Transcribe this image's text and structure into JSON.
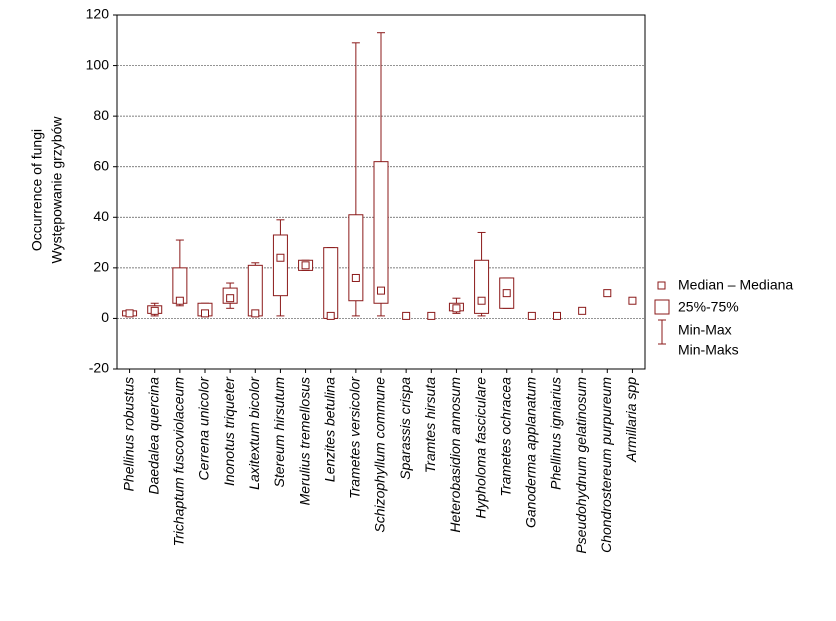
{
  "chart_data": {
    "type": "box",
    "ylabel": [
      "Occurrence of fungi",
      "Występowanie grzybów"
    ],
    "categories": [
      "Phellinus robustus",
      "Daedalea quercina",
      "Trichaptum fuscoviolaceum",
      "Cerrena unicolor",
      "Inonotus triqueter",
      "Laxitextum bicolor",
      "Stereum hirsutum",
      "Merulius tremellosus",
      "Lenzites betulina",
      "Trametes versicolor",
      "Schizophyllum commune",
      "Sparassis crispa",
      "Tramtes hirsuta",
      "Heterobasidion annosum",
      "Hypholoma fasciculare",
      "Trametes ochracea",
      "Ganoderma applanatum",
      "Phellinus igniarius",
      "Pseudohydnum gelatinosum",
      "Chondrostereum purpureum",
      "Armillaria spp"
    ],
    "min": [
      1,
      1,
      5,
      1,
      4,
      1,
      1,
      19,
      0,
      1,
      1,
      null,
      null,
      2,
      1,
      4,
      null,
      null,
      null,
      null,
      null
    ],
    "q1": [
      1,
      2,
      6,
      1,
      6,
      1,
      9,
      19,
      0,
      7,
      6,
      null,
      null,
      3,
      2,
      4,
      null,
      null,
      null,
      null,
      null
    ],
    "median": [
      2,
      3,
      7,
      2,
      8,
      2,
      24,
      21,
      1,
      16,
      11,
      1,
      1,
      4,
      7,
      10,
      1,
      1,
      3,
      10,
      7
    ],
    "q3": [
      3,
      5,
      20,
      6,
      12,
      21,
      33,
      23,
      28,
      41,
      62,
      null,
      null,
      6,
      23,
      16,
      null,
      null,
      null,
      null,
      null
    ],
    "max": [
      3,
      6,
      31,
      6,
      14,
      22,
      39,
      23,
      28,
      109,
      113,
      null,
      null,
      8,
      34,
      16,
      null,
      null,
      null,
      null,
      null
    ],
    "color": "#8b1a1a",
    "ylim": [
      -20,
      120
    ],
    "yticks": [
      -20,
      0,
      20,
      40,
      60,
      80,
      100,
      120
    ],
    "grid": true,
    "legend": {
      "median": "Median – Mediana",
      "box": "25%-75%",
      "whisker": [
        "Min-Max",
        "Min-Maks"
      ]
    }
  }
}
